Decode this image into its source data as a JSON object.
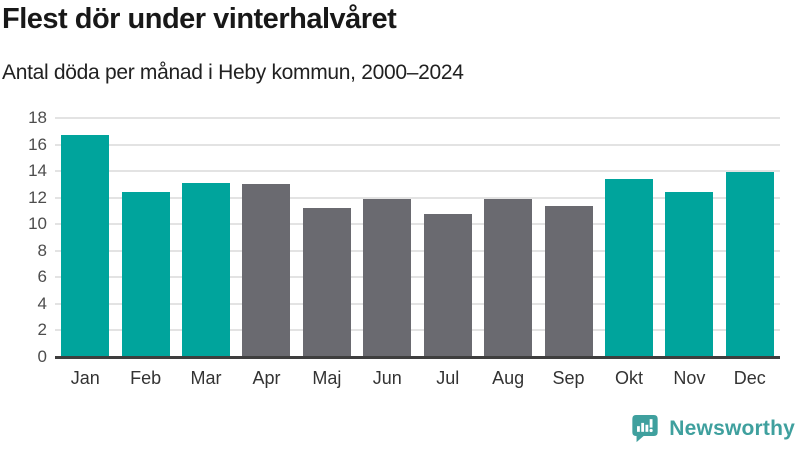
{
  "header": {
    "title": "Flest dör under vinterhalvåret",
    "subtitle": "Antal döda per månad i Heby kommun, 2000–2024"
  },
  "chart_data": {
    "type": "bar",
    "title": "Flest dör under vinterhalvåret",
    "subtitle": "Antal döda per månad i Heby kommun, 2000–2024",
    "categories": [
      "Jan",
      "Feb",
      "Mar",
      "Apr",
      "Maj",
      "Jun",
      "Jul",
      "Aug",
      "Sep",
      "Okt",
      "Nov",
      "Dec"
    ],
    "values": [
      16.7,
      12.4,
      13.1,
      13.0,
      11.2,
      11.9,
      10.8,
      11.9,
      11.4,
      13.4,
      12.4,
      13.9
    ],
    "bar_color_keys": [
      "teal",
      "teal",
      "teal",
      "gray",
      "gray",
      "gray",
      "gray",
      "gray",
      "gray",
      "teal",
      "teal",
      "teal"
    ],
    "colors": {
      "teal": "#00a49c",
      "gray": "#6a6a70"
    },
    "xlabel": "",
    "ylabel": "",
    "ylim": [
      0,
      18
    ],
    "yticks": [
      0,
      2,
      4,
      6,
      8,
      10,
      12,
      14,
      16,
      18
    ],
    "grid": "horizontal",
    "gridline_color": "#e3e3e3",
    "axis_color": "#3e3e3e",
    "legend": "none"
  },
  "branding": {
    "logo_text": "Newsworthy",
    "logo_color": "#3fa09e",
    "logo_icon": "bar-chart-speech-bubble-icon"
  }
}
